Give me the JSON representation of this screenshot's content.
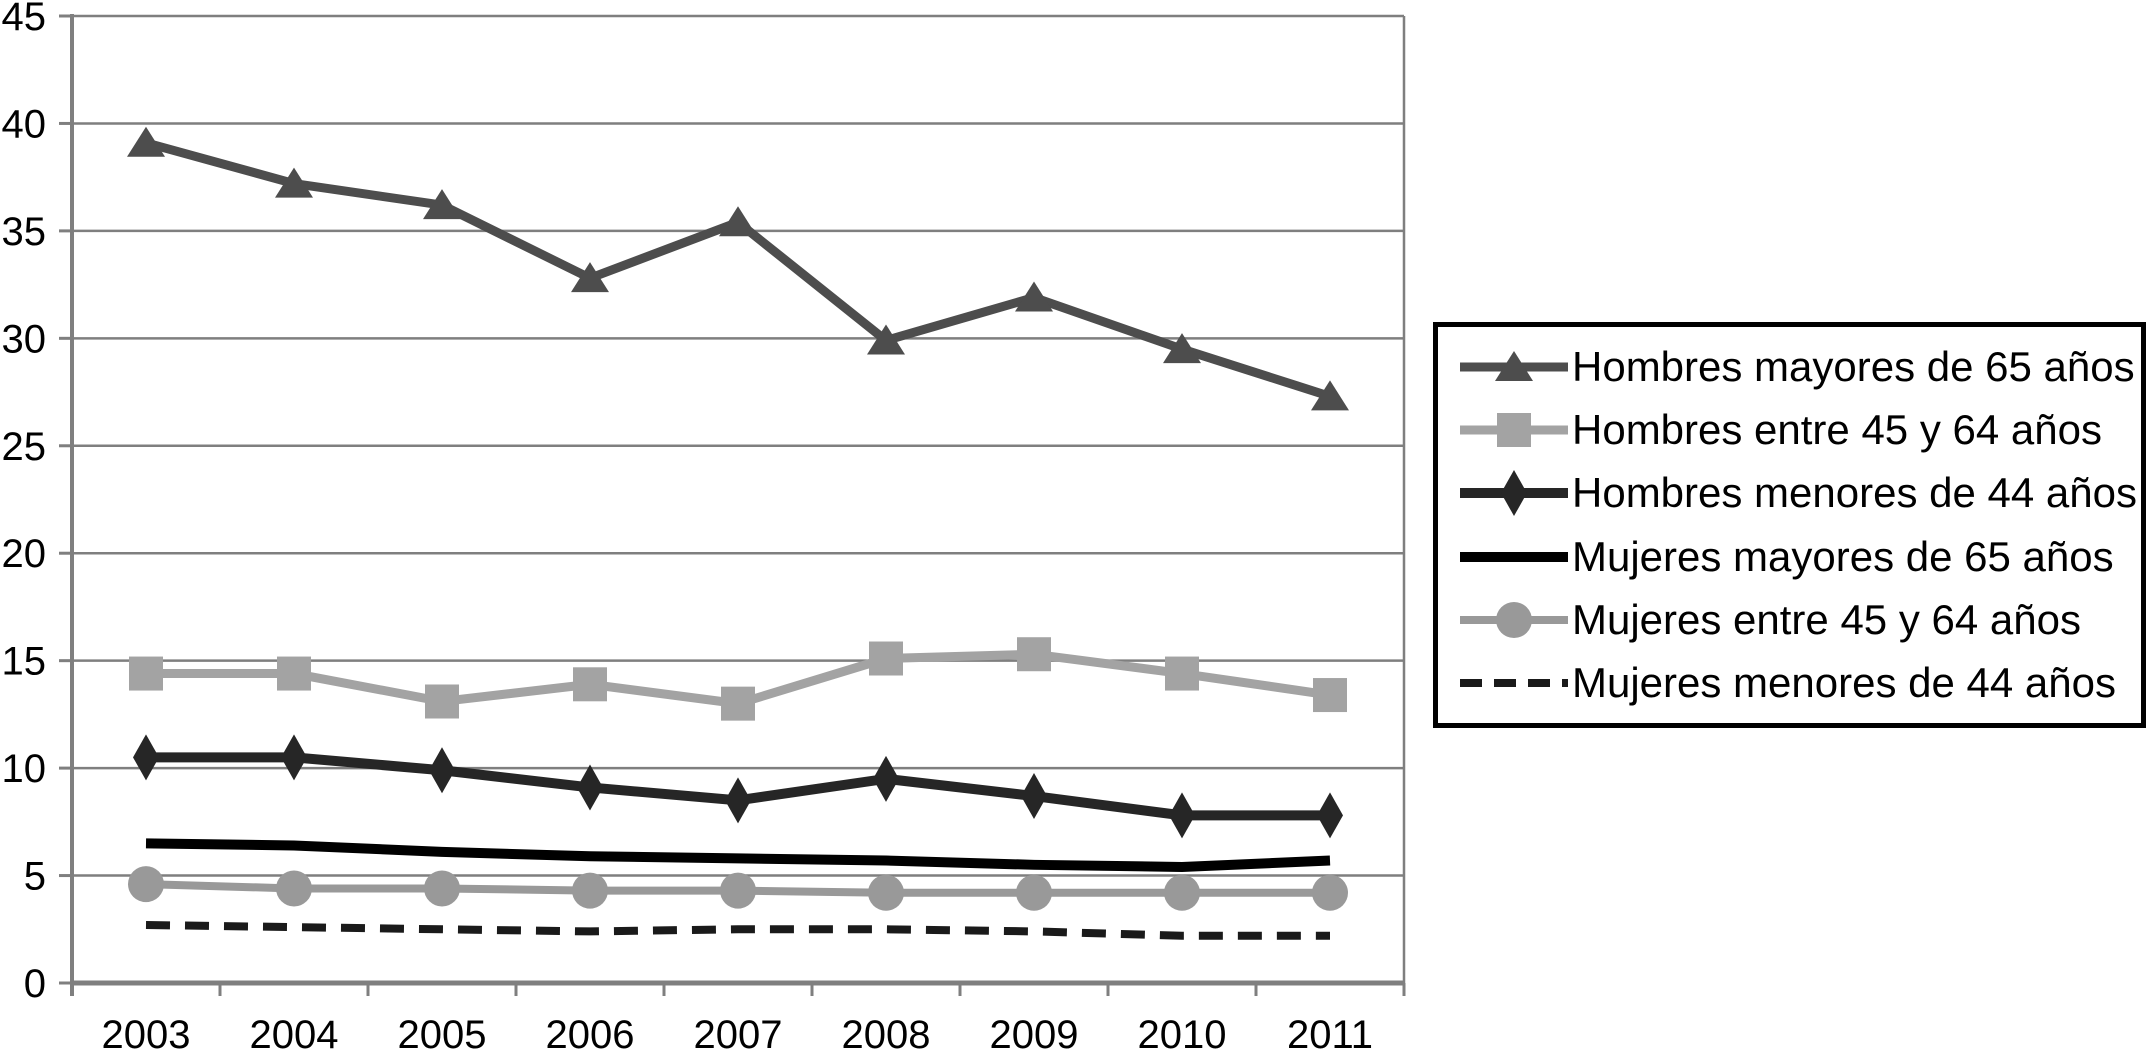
{
  "chart_data": {
    "type": "line",
    "title": "",
    "x": [
      "2003",
      "2004",
      "2005",
      "2006",
      "2007",
      "2008",
      "2009",
      "2010",
      "2011"
    ],
    "y_tick_labels": [
      "0",
      "5",
      "10",
      "15",
      "20",
      "25",
      "30",
      "35",
      "40",
      "45"
    ],
    "ylim": [
      0,
      45
    ],
    "ytick_step": 5,
    "grid": true,
    "legend_position": "right",
    "axis_color": "#7f7f7f",
    "series": [
      {
        "id": "hombres-mayores-65",
        "name": "Hombres mayores de 65 años",
        "marker": "triangle",
        "color": "#4d4d4d",
        "line_width": 9,
        "dashed": false,
        "values": [
          39.1,
          37.2,
          36.2,
          32.8,
          35.4,
          29.9,
          31.9,
          29.5,
          27.3
        ]
      },
      {
        "id": "hombres-entre-45-64",
        "name": "Hombres entre 45 y 64 años",
        "marker": "square",
        "color": "#a3a3a3",
        "line_width": 9,
        "dashed": false,
        "values": [
          14.4,
          14.4,
          13.1,
          13.9,
          13.0,
          15.1,
          15.3,
          14.4,
          13.4
        ]
      },
      {
        "id": "hombres-menores-44",
        "name": "Hombres menores de 44 años",
        "marker": "diamond",
        "color": "#262626",
        "line_width": 10,
        "dashed": false,
        "values": [
          10.5,
          10.5,
          9.9,
          9.1,
          8.5,
          9.5,
          8.7,
          7.8,
          7.8
        ]
      },
      {
        "id": "mujeres-mayores-65",
        "name": "Mujeres mayores de 65 años",
        "marker": "none",
        "color": "#000000",
        "line_width": 10,
        "dashed": false,
        "values": [
          6.5,
          6.4,
          6.1,
          5.9,
          5.8,
          5.7,
          5.5,
          5.4,
          5.7
        ]
      },
      {
        "id": "mujeres-entre-45-64",
        "name": "Mujeres entre 45 y 64 años",
        "marker": "circle",
        "color": "#999999",
        "line_width": 8,
        "dashed": false,
        "values": [
          4.6,
          4.4,
          4.4,
          4.3,
          4.3,
          4.2,
          4.2,
          4.2,
          4.2
        ]
      },
      {
        "id": "mujeres-menores-44",
        "name": "Mujeres menores de 44 años",
        "marker": "none",
        "color": "#1a1a1a",
        "line_width": 8,
        "dashed": true,
        "values": [
          2.7,
          2.6,
          2.5,
          2.4,
          2.5,
          2.5,
          2.4,
          2.2,
          2.2
        ]
      }
    ]
  }
}
